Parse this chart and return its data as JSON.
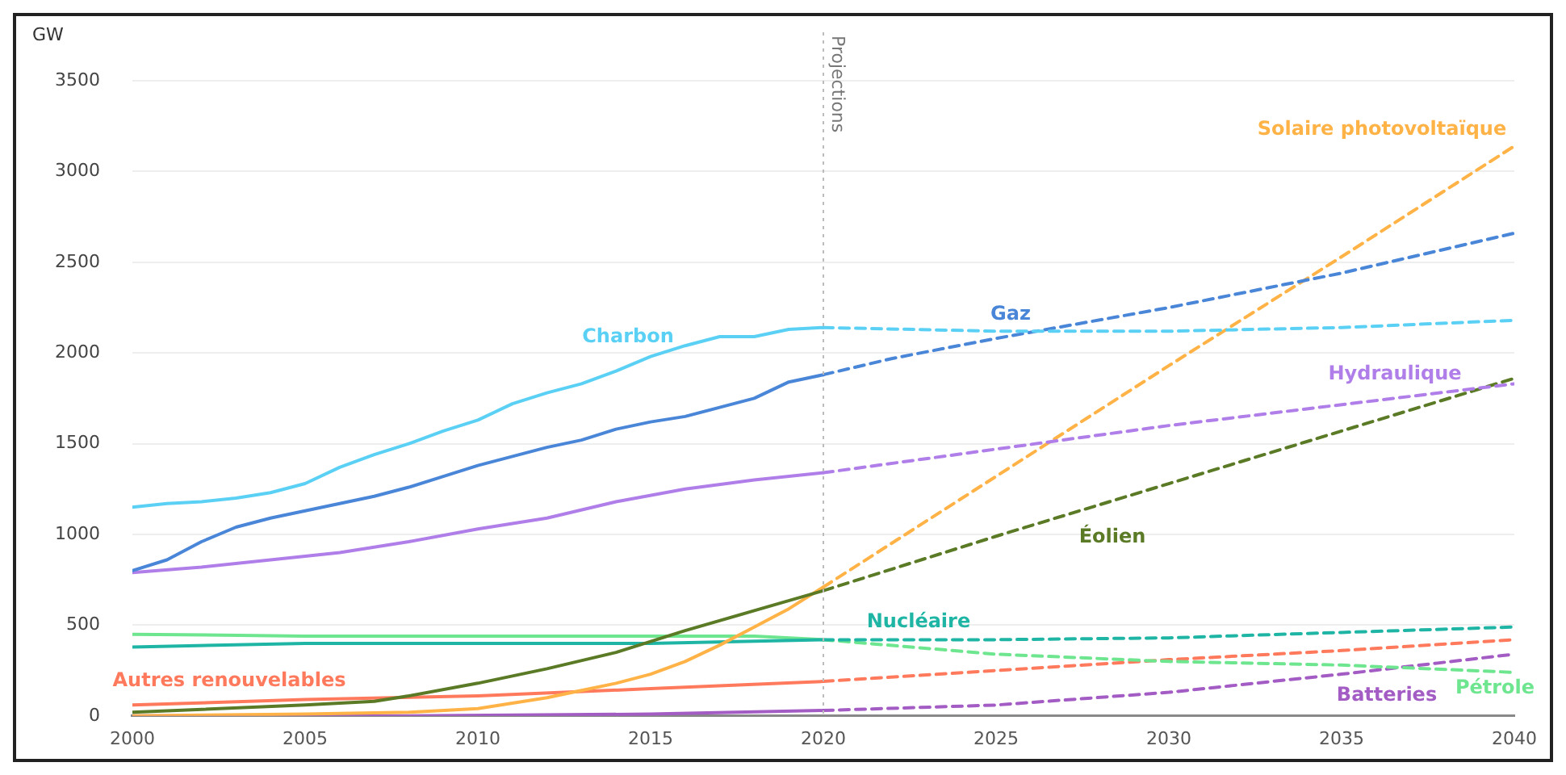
{
  "chart_data": {
    "type": "line",
    "ylabel": "GW",
    "xlim": [
      2000,
      2040
    ],
    "xticks": [
      2000,
      2005,
      2010,
      2015,
      2020,
      2025,
      2030,
      2035,
      2040
    ],
    "ylim": [
      0,
      3500
    ],
    "yticks": [
      0,
      500,
      1000,
      1500,
      2000,
      2500,
      3000,
      3500
    ],
    "grid": "y",
    "legend": false,
    "marker": "none",
    "ref_lines": [
      {
        "axis": "x",
        "value": 2020,
        "label": "Projections",
        "color": "#bbbbbb",
        "line_style": "dotted"
      }
    ],
    "series": [
      {
        "name": "Charbon",
        "color": "#5bd0f5",
        "line_style": "solid",
        "x": [
          2000,
          2001,
          2002,
          2003,
          2004,
          2005,
          2006,
          2007,
          2008,
          2009,
          2010,
          2011,
          2012,
          2013,
          2014,
          2015,
          2016,
          2017,
          2018,
          2019,
          2020
        ],
        "values": [
          1150,
          1170,
          1180,
          1200,
          1230,
          1280,
          1370,
          1440,
          1500,
          1570,
          1630,
          1720,
          1780,
          1830,
          1900,
          1980,
          2040,
          2090,
          2090,
          2130,
          2140
        ]
      },
      {
        "name": "Gaz",
        "color": "#4a86d8",
        "line_style": "solid",
        "x": [
          2000,
          2001,
          2002,
          2003,
          2004,
          2005,
          2006,
          2007,
          2008,
          2009,
          2010,
          2011,
          2012,
          2013,
          2014,
          2015,
          2016,
          2017,
          2018,
          2019,
          2020
        ],
        "values": [
          800,
          860,
          960,
          1040,
          1090,
          1130,
          1170,
          1210,
          1260,
          1320,
          1380,
          1430,
          1480,
          1520,
          1580,
          1620,
          1650,
          1700,
          1750,
          1840,
          1880
        ]
      },
      {
        "name": "Hydraulique",
        "color": "#b07ee8",
        "line_style": "solid",
        "x": [
          2000,
          2002,
          2004,
          2006,
          2008,
          2010,
          2012,
          2014,
          2016,
          2018,
          2020
        ],
        "values": [
          790,
          820,
          860,
          900,
          960,
          1030,
          1090,
          1180,
          1250,
          1300,
          1340
        ]
      },
      {
        "name": "Éolien",
        "color": "#5b7a26",
        "line_style": "solid",
        "x": [
          2000,
          2005,
          2007,
          2008,
          2010,
          2012,
          2014,
          2015,
          2016,
          2018,
          2020
        ],
        "values": [
          20,
          60,
          80,
          110,
          180,
          260,
          350,
          410,
          470,
          580,
          690
        ]
      },
      {
        "name": "Solaire photovoltaïque",
        "color": "#ffb347",
        "line_style": "solid",
        "x": [
          2000,
          2005,
          2008,
          2010,
          2012,
          2013,
          2014,
          2015,
          2016,
          2017,
          2018,
          2019,
          2020
        ],
        "values": [
          0,
          10,
          20,
          40,
          100,
          140,
          180,
          230,
          300,
          390,
          490,
          590,
          710
        ]
      },
      {
        "name": "Nucléaire",
        "color": "#1fb5a5",
        "line_style": "solid",
        "x": [
          2000,
          2005,
          2010,
          2015,
          2020
        ],
        "values": [
          380,
          400,
          400,
          400,
          420
        ]
      },
      {
        "name": "Pétrole",
        "color": "#6ee58f",
        "line_style": "solid",
        "x": [
          2000,
          2005,
          2010,
          2015,
          2018,
          2020
        ],
        "values": [
          450,
          440,
          440,
          440,
          440,
          420
        ]
      },
      {
        "name": "Autres renouvelables",
        "color": "#ff7a5c",
        "line_style": "solid",
        "x": [
          2000,
          2005,
          2010,
          2015,
          2020
        ],
        "values": [
          60,
          90,
          110,
          150,
          190
        ]
      },
      {
        "name": "Batteries",
        "color": "#a35cc4",
        "line_style": "solid",
        "x": [
          2000,
          2008,
          2015,
          2020
        ],
        "values": [
          0,
          0,
          10,
          30
        ]
      },
      {
        "color": "#5bd0f5",
        "line_style": "dashed",
        "x": [
          2020,
          2025,
          2030,
          2035,
          2040
        ],
        "values": [
          2140,
          2120,
          2120,
          2140,
          2180
        ]
      },
      {
        "color": "#4a86d8",
        "line_style": "dashed",
        "x": [
          2020,
          2022,
          2025,
          2030,
          2035,
          2040
        ],
        "values": [
          1880,
          1970,
          2080,
          2250,
          2440,
          2660
        ]
      },
      {
        "color": "#b07ee8",
        "line_style": "dashed",
        "x": [
          2020,
          2030,
          2040
        ],
        "values": [
          1340,
          1600,
          1830
        ]
      },
      {
        "color": "#5b7a26",
        "line_style": "dashed",
        "x": [
          2020,
          2025,
          2030,
          2035,
          2040
        ],
        "values": [
          690,
          990,
          1280,
          1570,
          1860
        ]
      },
      {
        "color": "#ffb347",
        "line_style": "dashed",
        "x": [
          2020,
          2025,
          2030,
          2035,
          2040
        ],
        "values": [
          710,
          1320,
          1930,
          2530,
          3140
        ]
      },
      {
        "color": "#1fb5a5",
        "line_style": "dashed",
        "x": [
          2020,
          2025,
          2030,
          2035,
          2040
        ],
        "values": [
          420,
          420,
          430,
          460,
          490
        ]
      },
      {
        "color": "#6ee58f",
        "line_style": "dashed",
        "x": [
          2020,
          2025,
          2030,
          2035,
          2040
        ],
        "values": [
          420,
          340,
          300,
          280,
          240
        ]
      },
      {
        "color": "#ff7a5c",
        "line_style": "dashed",
        "x": [
          2020,
          2025,
          2030,
          2035,
          2040
        ],
        "values": [
          190,
          250,
          310,
          360,
          420
        ]
      },
      {
        "color": "#a35cc4",
        "line_style": "dashed",
        "x": [
          2020,
          2025,
          2030,
          2035,
          2040
        ],
        "values": [
          30,
          60,
          130,
          230,
          340
        ]
      }
    ]
  }
}
